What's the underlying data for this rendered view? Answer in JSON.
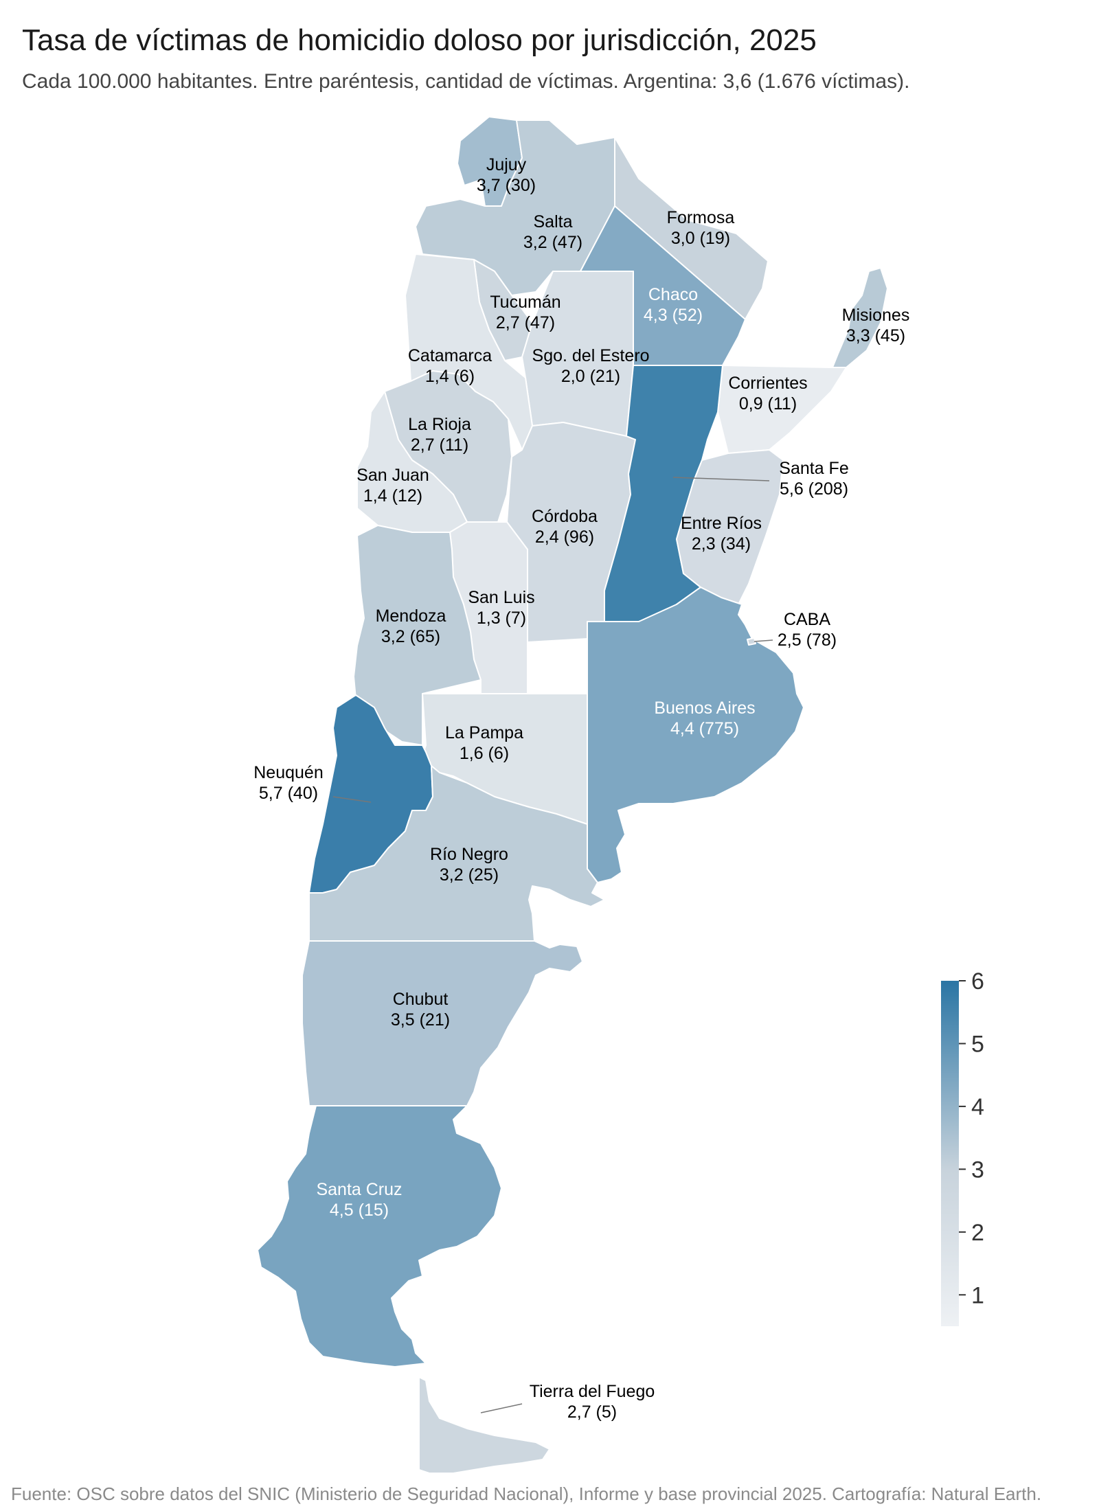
{
  "title": "Tasa de víctimas de homicidio doloso por jurisdicción, 2025",
  "subtitle": "Cada 100.000 habitantes. Entre paréntesis, cantidad de víctimas. Argentina: 3,6 (1.676 víctimas).",
  "footer": "Fuente: OSC sobre datos del SNIC (Ministerio de Seguridad Nacional), Informe y base provincial 2025. Cartografía: Natural Earth.",
  "legend": {
    "ticks": [
      "1",
      "2",
      "3",
      "4",
      "5",
      "6"
    ],
    "min": 0.5,
    "max": 6
  },
  "colors": {
    "low": "#eef1f4",
    "mid": "#c8d3dc",
    "high": "#2a75a4",
    "border": "#ffffff",
    "leader": "#777777"
  },
  "provinces": {
    "jujuy": {
      "name": "Jujuy",
      "value": "3,7  (30)",
      "rate": 3.7
    },
    "salta": {
      "name": "Salta",
      "value": "3,2  (47)",
      "rate": 3.2
    },
    "formosa": {
      "name": "Formosa",
      "value": "3,0  (19)",
      "rate": 3.0
    },
    "chaco": {
      "name": "Chaco",
      "value": "4,3  (52)",
      "rate": 4.3
    },
    "misiones": {
      "name": "Misiones",
      "value": "3,3  (45)",
      "rate": 3.3
    },
    "tucuman": {
      "name": "Tucumán",
      "value": "2,7  (47)",
      "rate": 2.7
    },
    "catamarca": {
      "name": "Catamarca",
      "value": "1,4  (6)",
      "rate": 1.4
    },
    "sgo": {
      "name": "Sgo. del Estero",
      "value": "2,0  (21)",
      "rate": 2.0
    },
    "corrientes": {
      "name": "Corrientes",
      "value": "0,9  (11)",
      "rate": 0.9
    },
    "larioja": {
      "name": "La Rioja",
      "value": "2,7  (11)",
      "rate": 2.7
    },
    "santafe": {
      "name": "Santa Fe",
      "value": "5,6  (208)",
      "rate": 5.6
    },
    "sanjuan": {
      "name": "San Juan",
      "value": "1,4  (12)",
      "rate": 1.4
    },
    "cordoba": {
      "name": "Córdoba",
      "value": "2,4  (96)",
      "rate": 2.4
    },
    "entrerios": {
      "name": "Entre Ríos",
      "value": "2,3  (34)",
      "rate": 2.3
    },
    "sanluis": {
      "name": "San Luis",
      "value": "1,3  (7)",
      "rate": 1.3
    },
    "mendoza": {
      "name": "Mendoza",
      "value": "3,2  (65)",
      "rate": 3.2
    },
    "caba": {
      "name": "CABA",
      "value": "2,5  (78)",
      "rate": 2.5
    },
    "buenosaires": {
      "name": "Buenos Aires",
      "value": "4,4  (775)",
      "rate": 4.4
    },
    "lapampa": {
      "name": "La Pampa",
      "value": "1,6  (6)",
      "rate": 1.6
    },
    "neuquen": {
      "name": "Neuquén",
      "value": "5,7  (40)",
      "rate": 5.7
    },
    "rionegro": {
      "name": "Río Negro",
      "value": "3,2  (25)",
      "rate": 3.2
    },
    "chubut": {
      "name": "Chubut",
      "value": "3,5  (21)",
      "rate": 3.5
    },
    "santacruz": {
      "name": "Santa Cruz",
      "value": "4,5  (15)",
      "rate": 4.5
    },
    "tdf": {
      "name": "Tierra del Fuego",
      "value": "2,7  (5)",
      "rate": 2.7
    }
  }
}
